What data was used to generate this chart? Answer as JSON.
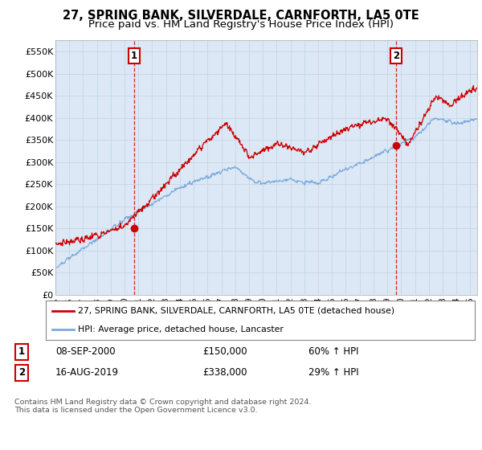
{
  "title": "27, SPRING BANK, SILVERDALE, CARNFORTH, LA5 0TE",
  "subtitle": "Price paid vs. HM Land Registry's House Price Index (HPI)",
  "title_fontsize": 10.5,
  "subtitle_fontsize": 9.5,
  "ylabel_ticks": [
    "£0",
    "£50K",
    "£100K",
    "£150K",
    "£200K",
    "£250K",
    "£300K",
    "£350K",
    "£400K",
    "£450K",
    "£500K",
    "£550K"
  ],
  "ytick_values": [
    0,
    50000,
    100000,
    150000,
    200000,
    250000,
    300000,
    350000,
    400000,
    450000,
    500000,
    550000
  ],
  "ylim": [
    0,
    575000
  ],
  "xlim_start": 1995.0,
  "xlim_end": 2025.5,
  "xtick_years": [
    1995,
    1996,
    1997,
    1998,
    1999,
    2000,
    2001,
    2002,
    2003,
    2004,
    2005,
    2006,
    2007,
    2008,
    2009,
    2010,
    2011,
    2012,
    2013,
    2014,
    2015,
    2016,
    2017,
    2018,
    2019,
    2020,
    2021,
    2022,
    2023,
    2024,
    2025
  ],
  "red_line_color": "#cc0000",
  "blue_line_color": "#7aaadd",
  "plot_bg_color": "#dce8f5",
  "sale1_x": 2000.69,
  "sale1_y": 150000,
  "sale2_x": 2019.62,
  "sale2_y": 338000,
  "annotation_box_color": "#cc0000",
  "legend_line1": "27, SPRING BANK, SILVERDALE, CARNFORTH, LA5 0TE (detached house)",
  "legend_line2": "HPI: Average price, detached house, Lancaster",
  "note1_date": "08-SEP-2000",
  "note1_price": "£150,000",
  "note1_hpi": "60% ↑ HPI",
  "note2_date": "16-AUG-2019",
  "note2_price": "£338,000",
  "note2_hpi": "29% ↑ HPI",
  "footer": "Contains HM Land Registry data © Crown copyright and database right 2024.\nThis data is licensed under the Open Government Licence v3.0.",
  "background_color": "#ffffff",
  "grid_color": "#c8d8e8"
}
